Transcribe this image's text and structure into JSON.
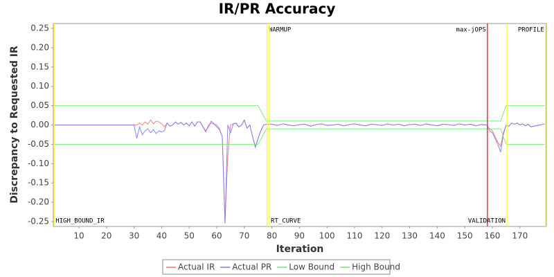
{
  "chart_data": {
    "type": "line",
    "title": "IR/PR Accuracy",
    "x_label": "Iteration",
    "y_label": "Discrepancy to Requested IR",
    "xlim": [
      0.7,
      179.6
    ],
    "ylim": [
      -0.2625,
      0.2625
    ],
    "xticks": [
      10,
      20,
      30,
      40,
      50,
      60,
      70,
      80,
      90,
      100,
      110,
      120,
      130,
      140,
      150,
      160,
      170
    ],
    "yticks": [
      {
        "value": 0.25,
        "label": "0.25"
      },
      {
        "value": 0.2,
        "label": "0.20"
      },
      {
        "value": 0.15,
        "label": "0.15"
      },
      {
        "value": 0.1,
        "label": "0.10"
      },
      {
        "value": 0.05,
        "label": "0.05"
      },
      {
        "value": 0,
        "label": "0.00"
      },
      {
        "value": -0.05,
        "label": "-0.05"
      },
      {
        "value": -0.1,
        "label": "-0.10"
      },
      {
        "value": -0.15,
        "label": "-0.15"
      },
      {
        "value": -0.2,
        "label": "-0.20"
      },
      {
        "value": -0.25,
        "label": "-0.25"
      }
    ],
    "grid": false,
    "legend": "bottom",
    "x": [
      1,
      30,
      31,
      32,
      33,
      34,
      35,
      36,
      37,
      38,
      39,
      40,
      41,
      42,
      43,
      44,
      45,
      46,
      47,
      48,
      49,
      50,
      51,
      52,
      53,
      54,
      55,
      56,
      57,
      58,
      59,
      60,
      61,
      62,
      63,
      64,
      65,
      66,
      67,
      68,
      69,
      70,
      71,
      72,
      73,
      74,
      75,
      76,
      77,
      78,
      80,
      82,
      84,
      86,
      88,
      90,
      92,
      94,
      96,
      98,
      100,
      102,
      104,
      106,
      108,
      110,
      112,
      114,
      116,
      118,
      120,
      122,
      124,
      126,
      128,
      130,
      132,
      134,
      136,
      138,
      140,
      142,
      144,
      146,
      148,
      150,
      152,
      154,
      156,
      158,
      159,
      160,
      161,
      162,
      163,
      164,
      165,
      166,
      167,
      168,
      169,
      170,
      171,
      172,
      173,
      174,
      175,
      176,
      177,
      178,
      179
    ],
    "series": [
      {
        "name": "Actual IR",
        "color": "#ff7070",
        "values": [
          0,
          0,
          0,
          0.005,
          0,
          0.008,
          0.002,
          0.013,
          0.003,
          0.01,
          0.008,
          0.003,
          -0.005,
          0.005,
          -0.003,
          0,
          0.008,
          0.002,
          0.007,
          0,
          0.005,
          -0.002,
          0.008,
          -0.003,
          0.008,
          0.008,
          -0.005,
          -0.018,
          0,
          0.005,
          0.002,
          0,
          -0.01,
          -0.03,
          -0.25,
          -0.08,
          0,
          0.003,
          0.004,
          -0.005,
          0,
          0.013,
          -0.008,
          0,
          -0.03,
          -0.055,
          -0.035,
          -0.015,
          0,
          0.002,
          0.002,
          -0.001,
          0.003,
          0,
          -0.002,
          0.001,
          0.002,
          -0.003,
          0.001,
          0.003,
          -0.001,
          0,
          0.002,
          -0.002,
          0.001,
          0.003,
          0,
          -0.002,
          0.002,
          0.001,
          -0.001,
          0.003,
          0,
          0.002,
          -0.002,
          0.001,
          0.002,
          -0.001,
          0.003,
          0,
          -0.002,
          0.002,
          0.001,
          -0.001,
          0.003,
          0,
          0.002,
          -0.002,
          0.001,
          0,
          -0.01,
          -0.015,
          -0.03,
          -0.045,
          -0.055,
          -0.02,
          0,
          -0.003,
          0.005,
          0.002,
          0.005,
          0,
          0.003,
          -0.002,
          0.002,
          -0.005,
          -0.003,
          -0.002,
          0,
          0.001,
          0.003
        ]
      },
      {
        "name": "Actual PR",
        "color": "#7878ff",
        "values": [
          0,
          0,
          -0.035,
          -0.005,
          -0.025,
          -0.015,
          -0.01,
          -0.02,
          -0.012,
          -0.022,
          -0.015,
          -0.018,
          -0.015,
          0.005,
          -0.003,
          0,
          0.008,
          0.002,
          0.007,
          0,
          0.005,
          -0.002,
          0.008,
          -0.003,
          0.008,
          0.008,
          -0.005,
          -0.015,
          -0.005,
          0.01,
          0.003,
          -0.005,
          -0.012,
          -0.03,
          -0.255,
          0,
          -0.02,
          0.003,
          0.005,
          -0.005,
          0,
          0.012,
          -0.008,
          0,
          -0.03,
          -0.058,
          -0.035,
          -0.015,
          0,
          0.002,
          0.002,
          -0.001,
          0.003,
          0,
          -0.002,
          0.001,
          0.002,
          -0.003,
          0.001,
          0.003,
          -0.001,
          0,
          0.002,
          -0.002,
          0.001,
          0.003,
          0,
          -0.002,
          0.002,
          0.001,
          -0.001,
          0.003,
          0,
          0.002,
          -0.002,
          0.001,
          0.002,
          -0.001,
          0.003,
          0,
          -0.002,
          0.002,
          0.001,
          -0.001,
          0.003,
          0,
          0.002,
          -0.002,
          0.001,
          0,
          -0.015,
          -0.02,
          -0.035,
          -0.05,
          -0.07,
          -0.025,
          0,
          -0.003,
          0.005,
          0.002,
          0.005,
          0,
          0.003,
          -0.002,
          0.002,
          -0.005,
          -0.003,
          -0.002,
          0,
          0.001,
          0.003
        ]
      },
      {
        "name": "Low Bound",
        "color": "#66ee66",
        "x": [
          1,
          75,
          78,
          163,
          165,
          179
        ],
        "values": [
          -0.05,
          -0.05,
          -0.01,
          -0.01,
          -0.05,
          -0.05
        ]
      },
      {
        "name": "High Bound",
        "color": "#66ee66",
        "x": [
          1,
          75,
          78,
          163,
          165,
          179
        ],
        "values": [
          0.05,
          0.05,
          0.01,
          0.01,
          0.05,
          0.05
        ]
      }
    ],
    "markers": [
      {
        "label": "HIGH_BOUND_IR",
        "x": 1,
        "color": "#ffff40",
        "label_position": "bottom",
        "label_side": "right"
      },
      {
        "label": "WARMUP",
        "x": 78.3,
        "color": "#ffff40",
        "label_position": "top",
        "label_side": "right"
      },
      {
        "label": "RT_CURVE",
        "x": 79.1,
        "color": "#ffff40",
        "label_position": "bottom",
        "label_side": "right"
      },
      {
        "label": "max-jOPS",
        "x": 158.2,
        "color": "#ff3030",
        "label_position": "top",
        "label_side": "left"
      },
      {
        "label": "VALIDATION",
        "x": 165.3,
        "color": "#ffff40",
        "label_position": "bottom",
        "label_side": "left"
      },
      {
        "label": "PROFILE",
        "x": 179.3,
        "color": "#ffff40",
        "label_position": "top",
        "label_side": "left"
      }
    ]
  }
}
